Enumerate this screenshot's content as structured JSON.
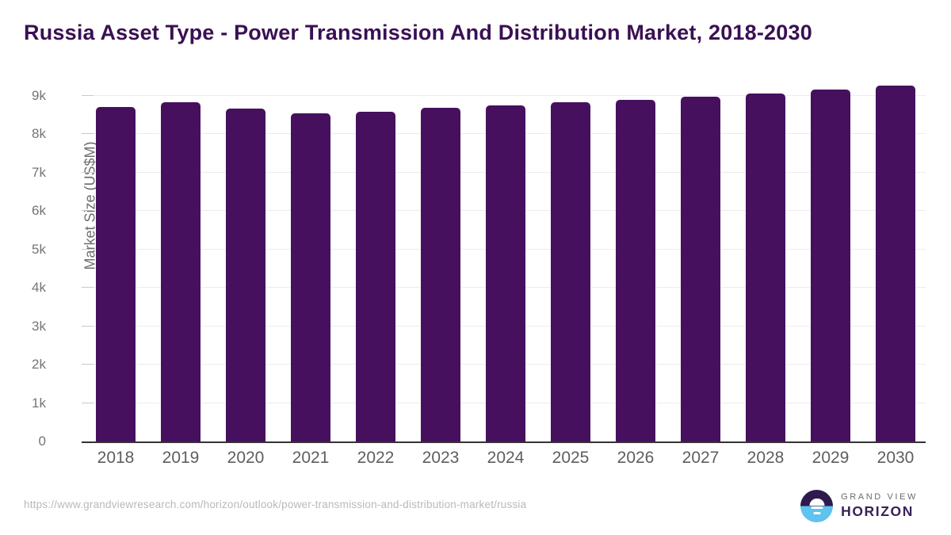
{
  "title": "Russia Asset Type - Power Transmission And Distribution Market, 2018-2030",
  "footer": {
    "source_url": "https://www.grandviewresearch.com/horizon/outlook/power-transmission-and-distribution-market/russia"
  },
  "logo": {
    "top_text": "GRAND VIEW",
    "bottom_text": "HORIZON"
  },
  "colors": {
    "bar": "#46105e",
    "title": "#3a1053",
    "logo_purple": "#2e1a4d",
    "logo_blue": "#5fc2ef",
    "gridline": "#ececec",
    "axis_line": "#333333"
  },
  "chart_data": {
    "type": "bar",
    "title": "Russia Asset Type - Power Transmission And Distribution Market, 2018-2030",
    "xlabel": "",
    "ylabel": "Market Size (US$M)",
    "categories": [
      2018,
      2019,
      2020,
      2021,
      2022,
      2023,
      2024,
      2025,
      2026,
      2027,
      2028,
      2029,
      2030
    ],
    "values": [
      8710,
      8830,
      8660,
      8540,
      8580,
      8690,
      8750,
      8820,
      8880,
      8960,
      9060,
      9150,
      9250
    ],
    "series": [
      {
        "name": "Market Size (US$M)",
        "values": [
          8710,
          8830,
          8660,
          8540,
          8580,
          8690,
          8750,
          8820,
          8880,
          8960,
          9060,
          9150,
          9250
        ]
      }
    ],
    "ylim": [
      0,
      9500
    ],
    "ytick_values": [
      0,
      1000,
      2000,
      3000,
      4000,
      5000,
      6000,
      7000,
      8000,
      9000
    ],
    "ytick_labels": [
      "0",
      "1k",
      "2k",
      "3k",
      "4k",
      "5k",
      "6k",
      "7k",
      "8k",
      "9k"
    ],
    "grid": "horizontal",
    "legend": "none"
  }
}
